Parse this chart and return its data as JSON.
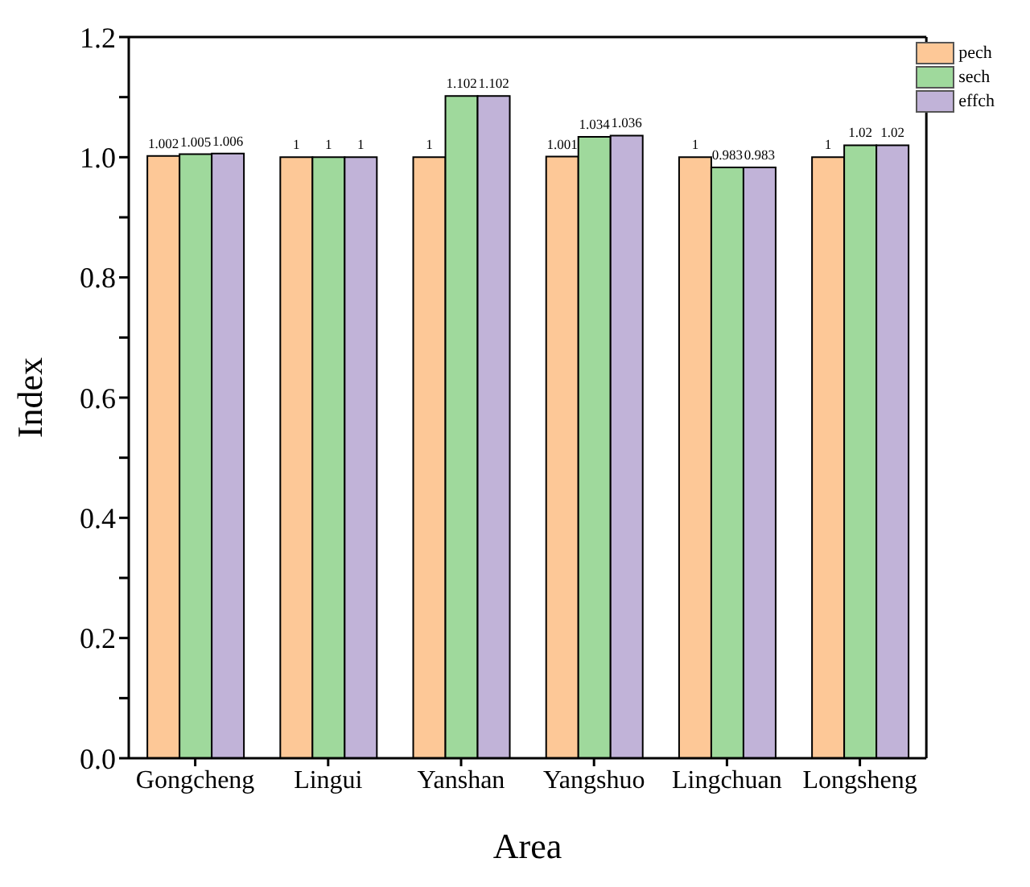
{
  "chart_data": {
    "type": "bar",
    "xlabel": "Area",
    "ylabel": "Index",
    "categories": [
      "Gongcheng",
      "Lingui",
      "Yanshan",
      "Yangshuo",
      "Lingchuan",
      "Longsheng"
    ],
    "series": [
      {
        "name": "pech",
        "color": "#fdc897",
        "values": [
          1.002,
          1,
          1,
          1.001,
          1,
          1
        ]
      },
      {
        "name": "sech",
        "color": "#9fd99c",
        "values": [
          1.005,
          1,
          1.102,
          1.034,
          0.983,
          1.02
        ]
      },
      {
        "name": "effch",
        "color": "#c1b3d8",
        "values": [
          1.006,
          1,
          1.102,
          1.036,
          0.983,
          1.02
        ]
      }
    ],
    "ylim": [
      0,
      1.2
    ],
    "yticks": [
      "0.0",
      {
        "value": 0.1,
        "label": null
      },
      "0.2",
      {
        "value": 0.3,
        "label": null
      },
      "0.4",
      {
        "value": 0.5,
        "label": null
      },
      "0.6",
      {
        "value": 0.7,
        "label": null
      },
      "0.8",
      {
        "value": 0.9,
        "label": null
      },
      "1.0",
      {
        "value": 1.1,
        "label": null
      },
      "1.2"
    ],
    "data_labels": true,
    "legend": "top right",
    "grid": false
  }
}
